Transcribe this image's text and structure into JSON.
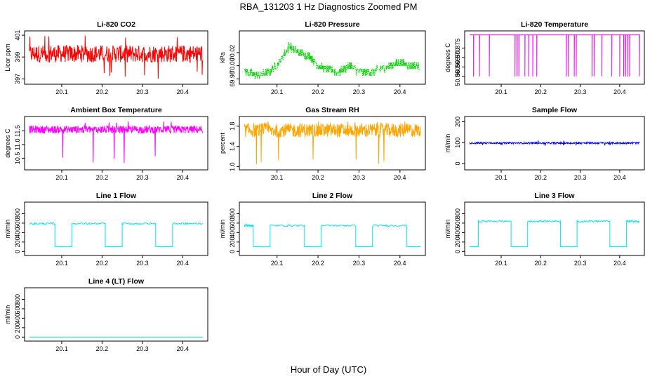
{
  "figure": {
    "title": "RBA_131203  1 Hz Diagnostics Zoomed PM",
    "xlabel": "Hour of Day (UTC)"
  },
  "chart_data": [
    {
      "id": "co2",
      "type": "line",
      "title": "Li-820 CO2",
      "ylabel": "Licor ppm",
      "color": "#ff0000",
      "xlim": [
        20.02,
        20.45
      ],
      "xticks": [
        20.1,
        20.2,
        20.3,
        20.4
      ],
      "ylim": [
        396.7,
        401.2
      ],
      "yticks": [
        "397",
        "399",
        "401"
      ],
      "ytick_values": [
        397,
        399,
        401
      ],
      "pattern": "noise",
      "base": 399.3,
      "amp": 0.8,
      "spike_down": 397.0,
      "spike_up": 401.1
    },
    {
      "id": "pressure",
      "type": "line",
      "title": "Li-820 Pressure",
      "ylabel": "kPa",
      "color": "#00cc00",
      "xlim": [
        20.02,
        20.45
      ],
      "xticks": [
        20.1,
        20.2,
        20.3,
        20.4
      ],
      "ylim": [
        69.975,
        70.05
      ],
      "yticks": [
        "69.98",
        "70.00",
        "70.02"
      ],
      "ytick_values": [
        69.98,
        70.0,
        70.02
      ],
      "pattern": "steps",
      "step": 0.005,
      "points": [
        [
          20.02,
          69.992
        ],
        [
          20.05,
          69.985
        ],
        [
          20.08,
          69.99
        ],
        [
          20.1,
          70.0
        ],
        [
          20.12,
          70.02
        ],
        [
          20.13,
          70.03
        ],
        [
          20.15,
          70.02
        ],
        [
          20.18,
          70.015
        ],
        [
          20.2,
          70.0
        ],
        [
          20.22,
          69.995
        ],
        [
          20.25,
          69.99
        ],
        [
          20.28,
          70.0
        ],
        [
          20.3,
          69.99
        ],
        [
          20.33,
          69.99
        ],
        [
          20.35,
          69.995
        ],
        [
          20.38,
          70.0
        ],
        [
          20.4,
          70.005
        ],
        [
          20.43,
          70.0
        ],
        [
          20.45,
          70.0
        ]
      ]
    },
    {
      "id": "licor_temp",
      "type": "line",
      "title": "Li-820 Temperature",
      "ylabel": "degrees C",
      "color": "#ff00ff",
      "xlim": [
        20.02,
        20.45
      ],
      "xticks": [
        20.1,
        20.2,
        20.3,
        20.4
      ],
      "ylim": [
        50.857,
        50.883
      ],
      "yticks": [
        "50.860",
        "50.865",
        "50.870",
        "50.875"
      ],
      "ytick_values": [
        50.86,
        50.865,
        50.87,
        50.875
      ],
      "pattern": "flat_drops",
      "level": 50.882,
      "drop_level": 50.86,
      "drops": [
        20.03,
        20.045,
        20.07,
        20.135,
        20.14,
        20.145,
        20.16,
        20.17,
        20.18,
        20.19,
        20.265,
        20.27,
        20.285,
        20.29,
        20.33,
        20.335,
        20.355,
        20.38,
        20.4,
        20.41,
        20.415,
        20.42,
        20.425,
        20.45
      ]
    },
    {
      "id": "box_temp",
      "type": "line",
      "title": "Ambient Box Temperature",
      "ylabel": "degrees C",
      "color": "#ff00ff",
      "xlim": [
        20.02,
        20.45
      ],
      "xticks": [
        20.1,
        20.2,
        20.3,
        20.4
      ],
      "ylim": [
        10.15,
        11.95
      ],
      "yticks": [
        "10.5",
        "11.0",
        "11.5"
      ],
      "ytick_values": [
        10.5,
        11.0,
        11.5
      ],
      "pattern": "noise",
      "base": 11.55,
      "amp": 0.14,
      "spike_down": 10.3,
      "spike_up": 11.85
    },
    {
      "id": "rh",
      "type": "line",
      "title": "Gas Stream RH",
      "ylabel": "percent",
      "color": "#ffa500",
      "xlim": [
        20.02,
        20.45
      ],
      "xticks": [
        20.1,
        20.2,
        20.3,
        20.4
      ],
      "ylim": [
        0.98,
        1.95
      ],
      "yticks": [
        "1.0",
        "1.4",
        "1.8"
      ],
      "ytick_values": [
        1.0,
        1.4,
        1.8
      ],
      "pattern": "noise",
      "base": 1.72,
      "amp": 0.14,
      "spike_down": 1.0,
      "spike_up": 1.9
    },
    {
      "id": "sample_flow",
      "type": "line",
      "title": "Sample Flow",
      "ylabel": "ml/min",
      "color": "#0000ff",
      "xlim": [
        20.02,
        20.45
      ],
      "xticks": [
        20.1,
        20.2,
        20.3,
        20.4
      ],
      "ylim": [
        -20,
        215
      ],
      "yticks": [
        "0",
        "100",
        "200"
      ],
      "ytick_values": [
        0,
        100,
        200
      ],
      "pattern": "noise",
      "base": 98,
      "amp": 4,
      "spike_down": 85,
      "spike_up": 110
    },
    {
      "id": "line1",
      "type": "line",
      "title": "Line 1 Flow",
      "ylabel": "ml/min",
      "color": "#00e5ee",
      "xlim": [
        20.02,
        20.45
      ],
      "xticks": [
        20.1,
        20.2,
        20.3,
        20.4
      ],
      "ylim": [
        -40,
        1000
      ],
      "yticks": [
        "0",
        "200",
        "400",
        "600",
        "800"
      ],
      "ytick_values": [
        0,
        200,
        400,
        600,
        800
      ],
      "pattern": "square",
      "high": 590,
      "low": 100,
      "transitions": [
        [
          20.02,
          "high"
        ],
        [
          20.083,
          "low"
        ],
        [
          20.125,
          "high"
        ],
        [
          20.208,
          "low"
        ],
        [
          20.25,
          "high"
        ],
        [
          20.333,
          "low"
        ],
        [
          20.375,
          "high"
        ],
        [
          20.45,
          "high"
        ]
      ]
    },
    {
      "id": "line2",
      "type": "line",
      "title": "Line 2 Flow",
      "ylabel": "ml/min",
      "color": "#00e5ee",
      "xlim": [
        20.02,
        20.45
      ],
      "xticks": [
        20.1,
        20.2,
        20.3,
        20.4
      ],
      "ylim": [
        -40,
        1000
      ],
      "yticks": [
        "0",
        "200",
        "400",
        "600",
        "800"
      ],
      "ytick_values": [
        0,
        200,
        400,
        600,
        800
      ],
      "pattern": "square",
      "high": 550,
      "low": 100,
      "transitions": [
        [
          20.02,
          "high"
        ],
        [
          20.042,
          "low"
        ],
        [
          20.083,
          "high"
        ],
        [
          20.167,
          "low"
        ],
        [
          20.208,
          "high"
        ],
        [
          20.292,
          "low"
        ],
        [
          20.333,
          "high"
        ],
        [
          20.417,
          "low"
        ],
        [
          20.45,
          "low"
        ]
      ]
    },
    {
      "id": "line3",
      "type": "line",
      "title": "Line 3 Flow",
      "ylabel": "ml/min",
      "color": "#00e5ee",
      "xlim": [
        20.02,
        20.45
      ],
      "xticks": [
        20.1,
        20.2,
        20.3,
        20.4
      ],
      "ylim": [
        -40,
        1000
      ],
      "yticks": [
        "0",
        "200",
        "400",
        "600",
        "800"
      ],
      "ytick_values": [
        0,
        200,
        400,
        600,
        800
      ],
      "pattern": "square",
      "high": 640,
      "low": 100,
      "transitions": [
        [
          20.02,
          "low"
        ],
        [
          20.042,
          "high"
        ],
        [
          20.125,
          "low"
        ],
        [
          20.167,
          "high"
        ],
        [
          20.25,
          "low"
        ],
        [
          20.292,
          "high"
        ],
        [
          20.375,
          "low"
        ],
        [
          20.417,
          "high"
        ],
        [
          20.45,
          "high"
        ]
      ]
    },
    {
      "id": "line4",
      "type": "line",
      "title": "Line 4 (LT) Flow",
      "ylabel": "ml/min",
      "color": "#00e5ee",
      "xlim": [
        20.02,
        20.45
      ],
      "xticks": [
        20.1,
        20.2,
        20.3,
        20.4
      ],
      "ylim": [
        -40,
        1000
      ],
      "yticks": [
        "0",
        "200",
        "400",
        "600",
        "800"
      ],
      "ytick_values": [
        0,
        200,
        400,
        600,
        800
      ],
      "pattern": "flat",
      "level": 2
    }
  ]
}
